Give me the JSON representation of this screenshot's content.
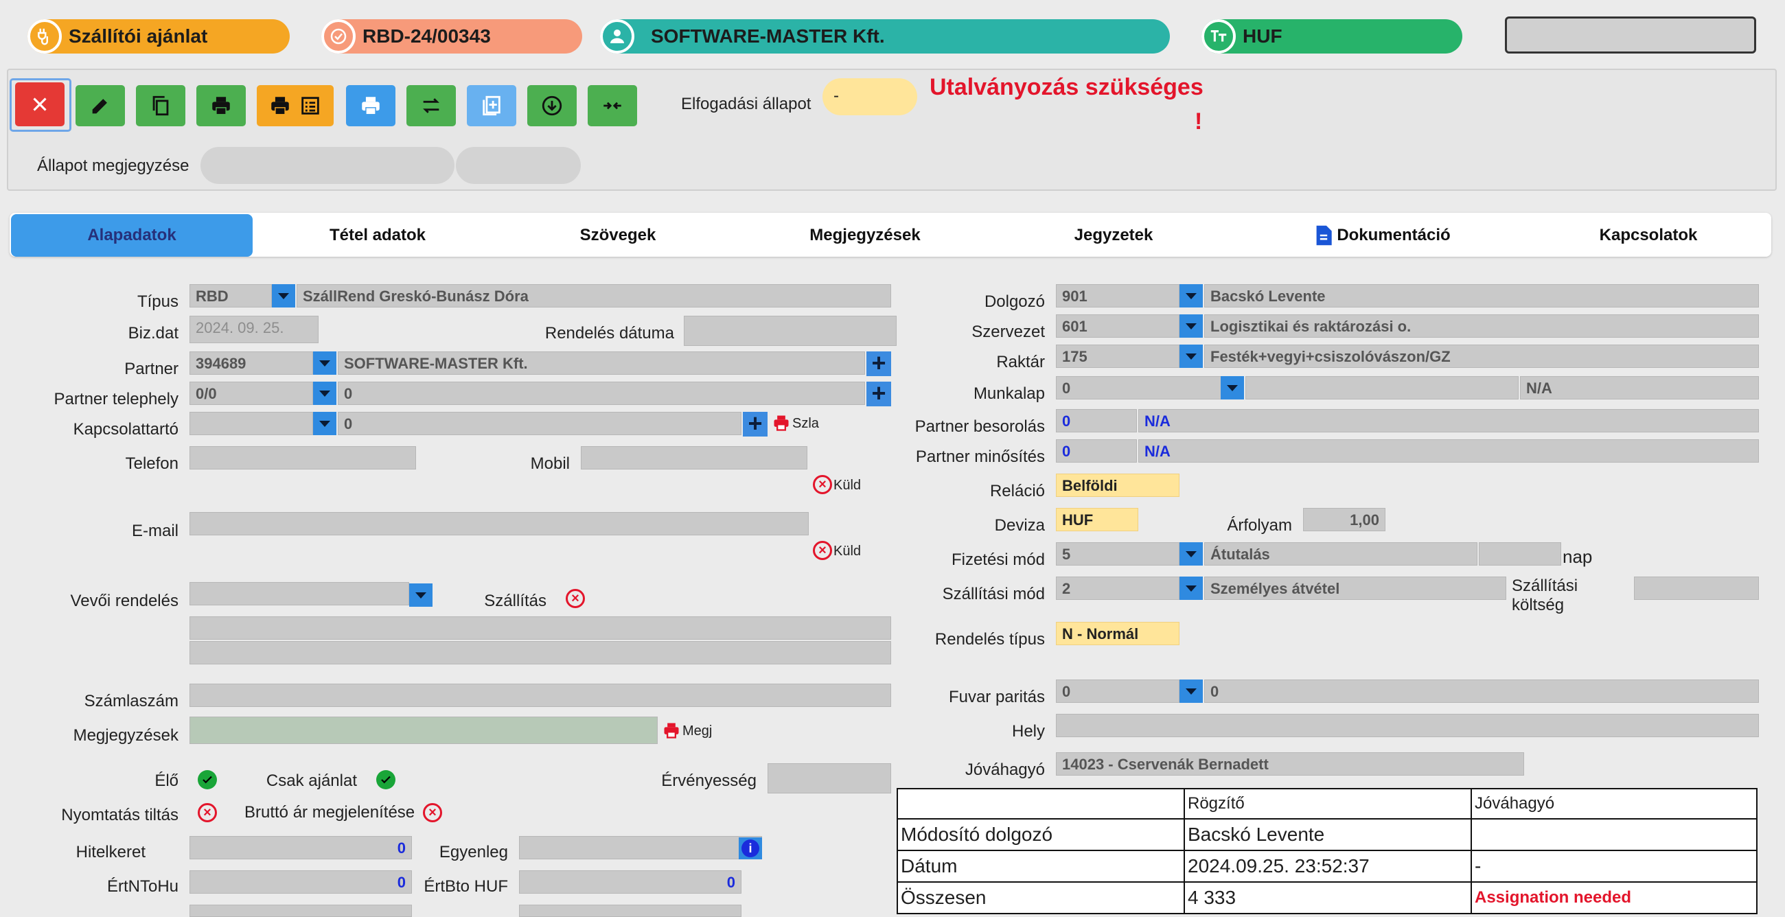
{
  "header": {
    "doc_type": "Szállítói ajánlat",
    "doc_number": "RBD-24/00343",
    "partner": "SOFTWARE-MASTER Kft.",
    "currency": "HUF",
    "colors": {
      "doc_type": "#f5a623",
      "doc_number": "#f79a7a",
      "partner": "#2bb3a7",
      "currency": "#27b36a"
    }
  },
  "toolbar": {
    "buttons": [
      "close-icon",
      "edit-icon",
      "copy-icon",
      "print-icon",
      "print-list-icon",
      "print-blue-icon",
      "swap-icon",
      "doc-add-icon",
      "download-icon",
      "merge-icon"
    ],
    "acceptance_label": "Elfogadási állapot",
    "acceptance_value": "-",
    "warning": "Utalványozás szükséges",
    "warning_mark": "!",
    "status_note_label": "Állapot megjegyzése"
  },
  "tabs": [
    "Alapadatok",
    "Tétel adatok",
    "Szövegek",
    "Megjegyzések",
    "Jegyzetek",
    "Dokumentáció",
    "Kapcsolatok"
  ],
  "left": {
    "type_label": "Típus",
    "type_code": "RBD",
    "type_name": "SzállRend Greskó-Bunász Dóra",
    "bizdat_label": "Biz.dat",
    "bizdat_value": "2024. 09. 25.",
    "order_date_label": "Rendelés dátuma",
    "partner_label": "Partner",
    "partner_code": "394689",
    "partner_name": "SOFTWARE-MASTER Kft.",
    "site_label": "Partner telephely",
    "site_code": "0/0",
    "site_value": "0",
    "contact_label": "Kapcsolattartó",
    "contact_value": "0",
    "szla": "Szla",
    "phone_label": "Telefon",
    "mobile_label": "Mobil",
    "send1": "Küld",
    "email_label": "E-mail",
    "send2": "Küld",
    "customer_order_label": "Vevői rendelés",
    "delivery_label": "Szállítás",
    "invoice_label": "Számlaszám",
    "notes_label": "Megjegyzések",
    "megj": "Megj",
    "live_label": "Élő",
    "offer_only_label": "Csak ajánlat",
    "validity_label": "Érvényesség",
    "print_ban_label": "Nyomtatás tiltás",
    "gross_price_label": "Bruttó ár megjelenítése",
    "credit_label": "Hitelkeret",
    "credit_value": "0",
    "balance_label": "Egyenleg",
    "ertnto_label": "ÉrtNToHu",
    "ertnto_value": "0",
    "ertbto_label": "ÉrtBto HUF",
    "ertbto_value": "0"
  },
  "right": {
    "employee_label": "Dolgozó",
    "employee_code": "901",
    "employee_name": "Bacskó Levente",
    "org_label": "Szervezet",
    "org_code": "601",
    "org_name": "Logisztikai és raktározási o.",
    "warehouse_label": "Raktár",
    "warehouse_code": "175",
    "warehouse_name": "Festék+vegyi+csiszolóvászon/GZ",
    "worksheet_label": "Munkalap",
    "worksheet_code": "0",
    "worksheet_na": "N/A",
    "partner_class_label": "Partner besorolás",
    "partner_class_code": "0",
    "partner_class_na": "N/A",
    "partner_rating_label": "Partner minősítés",
    "partner_rating_code": "0",
    "partner_rating_na": "N/A",
    "relation_label": "Reláció",
    "relation_value": "Belföldi",
    "currency_label": "Deviza",
    "currency_value": "HUF",
    "rate_label": "Árfolyam",
    "rate_value": "1,00",
    "payment_label": "Fizetési mód",
    "payment_code": "5",
    "payment_name": "Átutalás",
    "payment_unit": "nap",
    "shipping_label": "Szállítási mód",
    "shipping_code": "2",
    "shipping_name": "Személyes átvétel",
    "shipping_cost_label_1": "Szállítási",
    "shipping_cost_label_2": "költség",
    "order_type_label": "Rendelés típus",
    "order_type_value": "N - Normál",
    "freight_label": "Fuvar paritás",
    "freight_code": "0",
    "freight_value": "0",
    "place_label": "Hely",
    "approver_label": "Jóváhagyó",
    "approver_value": "14023 - Cservenák Bernadett"
  },
  "info_table": {
    "headers": [
      "",
      "Rögzítő",
      "Jóváhagyó"
    ],
    "rows": [
      [
        "Módosító dolgozó",
        "Bacskó Levente",
        ""
      ],
      [
        "Dátum",
        "2024.09.25. 23:52:37",
        "-"
      ],
      [
        "Összesen",
        "4 333",
        "Assignation needed"
      ]
    ]
  }
}
